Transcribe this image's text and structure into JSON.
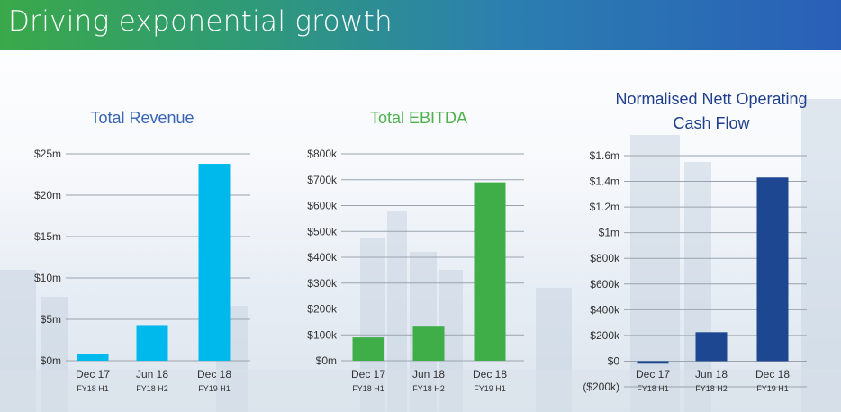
{
  "page": {
    "title": "Driving exponential growth"
  },
  "colors": {
    "revenue": "#00b9ec",
    "ebitda": "#3fae49",
    "cashflow": "#1d4790"
  },
  "chart_data": [
    {
      "type": "bar",
      "title": [
        "Total Revenue"
      ],
      "title_color": "#3a64b4",
      "categories": [
        "Dec 17",
        "Jun 18",
        "Dec 18"
      ],
      "subcategories": [
        "FY18 H1",
        "FY18 H2",
        "FY19 H1"
      ],
      "series": [
        {
          "values": [
            0.8,
            4.3,
            23.8
          ]
        }
      ],
      "ylim": [
        0,
        25
      ],
      "yticks": [
        0,
        5,
        10,
        15,
        20,
        25
      ],
      "yticklabels": [
        "$0m",
        "$5m",
        "$10m",
        "$15m",
        "$20m",
        "$25m"
      ],
      "color": "#00b9ec",
      "grid": true
    },
    {
      "type": "bar",
      "title": [
        "Total EBITDA"
      ],
      "title_color": "#4fb04f",
      "categories": [
        "Dec 17",
        "Jun 18",
        "Dec 18"
      ],
      "subcategories": [
        "FY18 H1",
        "FY18 H2",
        "FY19 H1"
      ],
      "series": [
        {
          "values": [
            90,
            135,
            690
          ]
        }
      ],
      "ylim": [
        0,
        800
      ],
      "yticks": [
        0,
        100,
        200,
        300,
        400,
        500,
        600,
        700,
        800
      ],
      "yticklabels": [
        "$0m",
        "$100k",
        "$200k",
        "$300k",
        "$400k",
        "$500k",
        "$600k",
        "$700k",
        "$800k"
      ],
      "color": "#3fae49",
      "grid": true
    },
    {
      "type": "bar",
      "title": [
        "Normalised Nett Operating",
        "Cash Flow"
      ],
      "title_color": "#1f3f8c",
      "categories": [
        "Dec 17",
        "Jun 18",
        "Dec 18"
      ],
      "subcategories": [
        "FY18 H1",
        "FY18 H2",
        "FY19 H1"
      ],
      "series": [
        {
          "values": [
            -20,
            225,
            1430
          ]
        }
      ],
      "ylim": [
        -200,
        1600
      ],
      "yticks": [
        -200,
        0,
        200,
        400,
        600,
        800,
        1000,
        1200,
        1400,
        1600
      ],
      "yticklabels": [
        "($200k)",
        "$0",
        "$200k",
        "$400k",
        "$600k",
        "$800k",
        "$1m",
        "$1.2m",
        "$1.4m",
        "$1.6m"
      ],
      "color": "#1d4790",
      "grid": true
    }
  ]
}
